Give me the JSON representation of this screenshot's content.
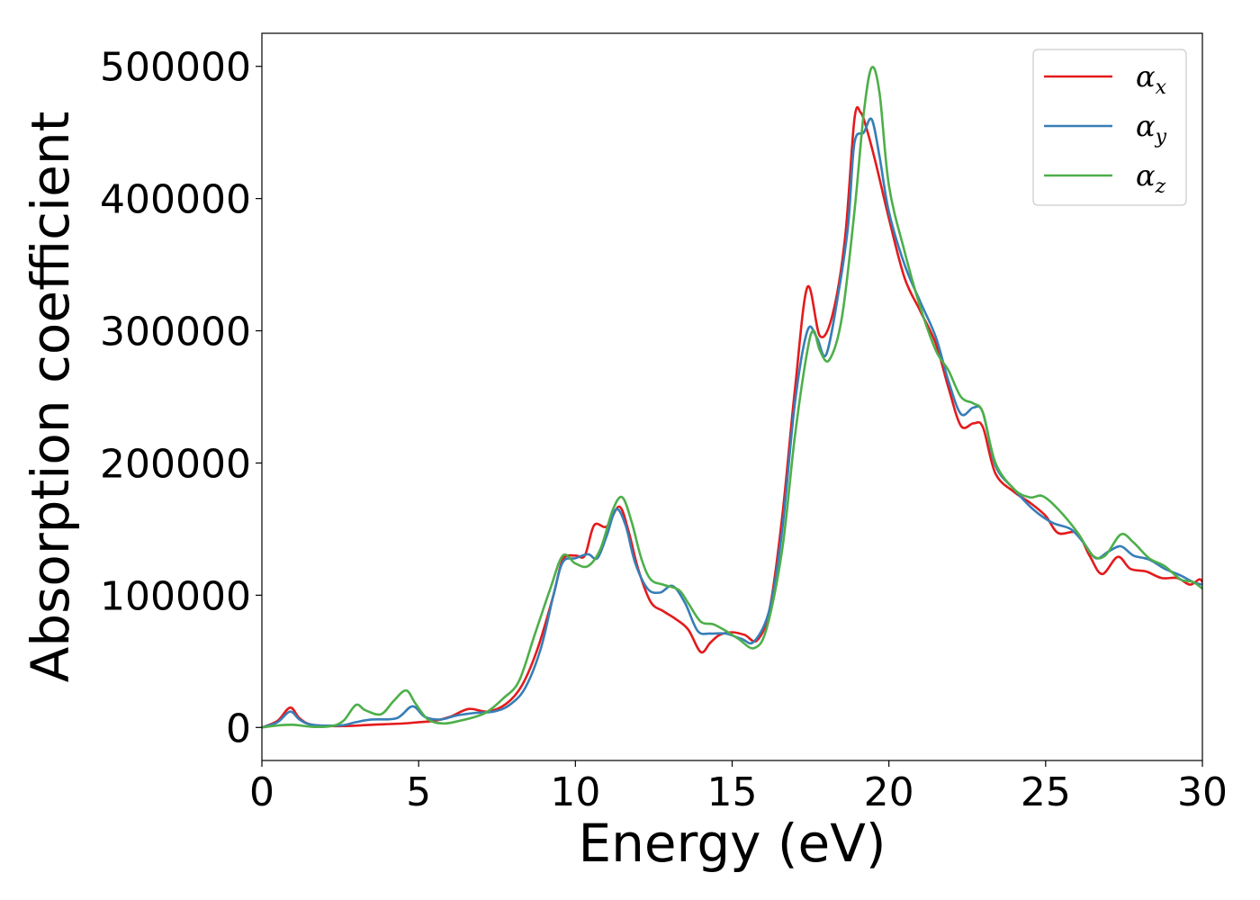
{
  "chart_data": {
    "type": "line",
    "title": "",
    "xlabel": "Energy (eV)",
    "ylabel": "Absorption coefficient",
    "xlim": [
      0,
      30
    ],
    "ylim": [
      -25000,
      525000
    ],
    "xticks": [
      0,
      5,
      10,
      15,
      20,
      25,
      30
    ],
    "xtick_labels": [
      "0",
      "5",
      "10",
      "15",
      "20",
      "25",
      "30"
    ],
    "yticks": [
      0,
      100000,
      200000,
      300000,
      400000,
      500000
    ],
    "ytick_labels": [
      "0",
      "100000",
      "200000",
      "300000",
      "400000",
      "500000"
    ],
    "grid": false,
    "legend_position": "top-right",
    "series": [
      {
        "name": "α",
        "subscript": "x",
        "color": "#e41a1c",
        "points": [
          [
            0,
            0
          ],
          [
            0.5,
            5000
          ],
          [
            0.9,
            15000
          ],
          [
            1.2,
            7000
          ],
          [
            1.6,
            2000
          ],
          [
            2.5,
            1000
          ],
          [
            3.5,
            2000
          ],
          [
            4.5,
            3000
          ],
          [
            5.0,
            4000
          ],
          [
            5.5,
            5000
          ],
          [
            6.0,
            8000
          ],
          [
            6.6,
            14000
          ],
          [
            7.2,
            12000
          ],
          [
            7.8,
            18000
          ],
          [
            8.3,
            32000
          ],
          [
            8.8,
            60000
          ],
          [
            9.3,
            100000
          ],
          [
            9.6,
            127000
          ],
          [
            10.0,
            130000
          ],
          [
            10.3,
            130000
          ],
          [
            10.6,
            153000
          ],
          [
            11.0,
            152000
          ],
          [
            11.4,
            167000
          ],
          [
            11.7,
            148000
          ],
          [
            12.0,
            120000
          ],
          [
            12.4,
            95000
          ],
          [
            12.8,
            88000
          ],
          [
            13.2,
            82000
          ],
          [
            13.6,
            74000
          ],
          [
            14.0,
            57000
          ],
          [
            14.3,
            64000
          ],
          [
            14.6,
            70000
          ],
          [
            15.0,
            72000
          ],
          [
            15.4,
            70000
          ],
          [
            15.8,
            66000
          ],
          [
            16.2,
            90000
          ],
          [
            16.6,
            160000
          ],
          [
            17.0,
            255000
          ],
          [
            17.4,
            333000
          ],
          [
            17.8,
            296000
          ],
          [
            18.2,
            312000
          ],
          [
            18.6,
            370000
          ],
          [
            18.9,
            460000
          ],
          [
            19.1,
            465000
          ],
          [
            19.3,
            452000
          ],
          [
            19.6,
            425000
          ],
          [
            20.0,
            385000
          ],
          [
            20.5,
            340000
          ],
          [
            21.0,
            315000
          ],
          [
            21.5,
            290000
          ],
          [
            21.9,
            257000
          ],
          [
            22.3,
            228000
          ],
          [
            22.7,
            230000
          ],
          [
            23.0,
            227000
          ],
          [
            23.4,
            192000
          ],
          [
            24.0,
            178000
          ],
          [
            24.5,
            170000
          ],
          [
            25.0,
            160000
          ],
          [
            25.4,
            147000
          ],
          [
            26.0,
            147000
          ],
          [
            26.4,
            130000
          ],
          [
            26.8,
            116000
          ],
          [
            27.3,
            129000
          ],
          [
            27.7,
            120000
          ],
          [
            28.2,
            118000
          ],
          [
            28.7,
            113000
          ],
          [
            29.2,
            113000
          ],
          [
            29.6,
            108000
          ],
          [
            29.9,
            112000
          ],
          [
            30,
            110000
          ]
        ]
      },
      {
        "name": "α",
        "subscript": "y",
        "color": "#377eb8",
        "points": [
          [
            0,
            0
          ],
          [
            0.5,
            4000
          ],
          [
            0.9,
            12000
          ],
          [
            1.2,
            6000
          ],
          [
            1.6,
            2000
          ],
          [
            2.5,
            1500
          ],
          [
            3.0,
            4000
          ],
          [
            3.5,
            6000
          ],
          [
            4.3,
            7000
          ],
          [
            4.8,
            16000
          ],
          [
            5.2,
            8000
          ],
          [
            5.7,
            6000
          ],
          [
            6.2,
            9000
          ],
          [
            6.8,
            11000
          ],
          [
            7.4,
            12000
          ],
          [
            7.9,
            17000
          ],
          [
            8.4,
            30000
          ],
          [
            8.9,
            60000
          ],
          [
            9.3,
            100000
          ],
          [
            9.6,
            125000
          ],
          [
            10.0,
            128000
          ],
          [
            10.4,
            131000
          ],
          [
            10.7,
            128000
          ],
          [
            11.0,
            145000
          ],
          [
            11.3,
            165000
          ],
          [
            11.6,
            153000
          ],
          [
            11.9,
            125000
          ],
          [
            12.3,
            105000
          ],
          [
            12.7,
            102000
          ],
          [
            13.1,
            107000
          ],
          [
            13.5,
            94000
          ],
          [
            13.9,
            73000
          ],
          [
            14.3,
            71000
          ],
          [
            14.8,
            71000
          ],
          [
            15.3,
            67000
          ],
          [
            15.7,
            65000
          ],
          [
            16.2,
            90000
          ],
          [
            16.6,
            150000
          ],
          [
            17.0,
            245000
          ],
          [
            17.4,
            300000
          ],
          [
            17.7,
            295000
          ],
          [
            18.0,
            282000
          ],
          [
            18.4,
            330000
          ],
          [
            18.7,
            380000
          ],
          [
            18.9,
            442000
          ],
          [
            19.2,
            450000
          ],
          [
            19.45,
            460000
          ],
          [
            19.7,
            432000
          ],
          [
            20.0,
            390000
          ],
          [
            20.5,
            350000
          ],
          [
            21.0,
            322000
          ],
          [
            21.5,
            295000
          ],
          [
            21.9,
            262000
          ],
          [
            22.3,
            237000
          ],
          [
            22.7,
            242000
          ],
          [
            23.0,
            238000
          ],
          [
            23.4,
            198000
          ],
          [
            24.0,
            180000
          ],
          [
            24.6,
            165000
          ],
          [
            25.2,
            155000
          ],
          [
            25.8,
            150000
          ],
          [
            26.2,
            140000
          ],
          [
            26.6,
            128000
          ],
          [
            27.0,
            133000
          ],
          [
            27.4,
            137000
          ],
          [
            27.8,
            130000
          ],
          [
            28.3,
            127000
          ],
          [
            28.8,
            120000
          ],
          [
            29.3,
            115000
          ],
          [
            29.7,
            110000
          ],
          [
            30,
            108000
          ]
        ]
      },
      {
        "name": "α",
        "subscript": "z",
        "color": "#4daf4a",
        "points": [
          [
            0,
            0
          ],
          [
            0.5,
            1500
          ],
          [
            1.0,
            2000
          ],
          [
            1.6,
            500
          ],
          [
            2.2,
            1000
          ],
          [
            2.6,
            5000
          ],
          [
            3.0,
            17000
          ],
          [
            3.3,
            13000
          ],
          [
            3.8,
            10000
          ],
          [
            4.2,
            20000
          ],
          [
            4.6,
            28000
          ],
          [
            4.9,
            18000
          ],
          [
            5.3,
            6000
          ],
          [
            5.8,
            3000
          ],
          [
            6.3,
            5000
          ],
          [
            6.8,
            8000
          ],
          [
            7.2,
            12000
          ],
          [
            7.7,
            22000
          ],
          [
            8.2,
            35000
          ],
          [
            8.7,
            70000
          ],
          [
            9.2,
            105000
          ],
          [
            9.6,
            130000
          ],
          [
            10.0,
            124000
          ],
          [
            10.4,
            122000
          ],
          [
            10.8,
            135000
          ],
          [
            11.2,
            165000
          ],
          [
            11.5,
            174000
          ],
          [
            11.8,
            155000
          ],
          [
            12.1,
            128000
          ],
          [
            12.4,
            112000
          ],
          [
            12.8,
            108000
          ],
          [
            13.3,
            104000
          ],
          [
            13.6,
            94000
          ],
          [
            14.0,
            80000
          ],
          [
            14.4,
            78000
          ],
          [
            14.8,
            73000
          ],
          [
            15.2,
            67000
          ],
          [
            15.7,
            60000
          ],
          [
            16.1,
            75000
          ],
          [
            16.6,
            135000
          ],
          [
            17.0,
            220000
          ],
          [
            17.4,
            285000
          ],
          [
            17.6,
            300000
          ],
          [
            17.8,
            285000
          ],
          [
            18.1,
            278000
          ],
          [
            18.5,
            310000
          ],
          [
            18.9,
            390000
          ],
          [
            19.2,
            465000
          ],
          [
            19.45,
            499000
          ],
          [
            19.7,
            480000
          ],
          [
            20.0,
            410000
          ],
          [
            20.5,
            360000
          ],
          [
            21.0,
            318000
          ],
          [
            21.5,
            285000
          ],
          [
            21.9,
            270000
          ],
          [
            22.3,
            250000
          ],
          [
            22.7,
            245000
          ],
          [
            23.0,
            238000
          ],
          [
            23.4,
            200000
          ],
          [
            24.0,
            180000
          ],
          [
            24.5,
            174000
          ],
          [
            24.9,
            175000
          ],
          [
            25.4,
            165000
          ],
          [
            26.0,
            148000
          ],
          [
            26.5,
            130000
          ],
          [
            26.9,
            130000
          ],
          [
            27.4,
            146000
          ],
          [
            27.8,
            140000
          ],
          [
            28.3,
            128000
          ],
          [
            28.8,
            122000
          ],
          [
            29.3,
            112000
          ],
          [
            29.7,
            110000
          ],
          [
            30,
            105000
          ]
        ]
      }
    ]
  }
}
